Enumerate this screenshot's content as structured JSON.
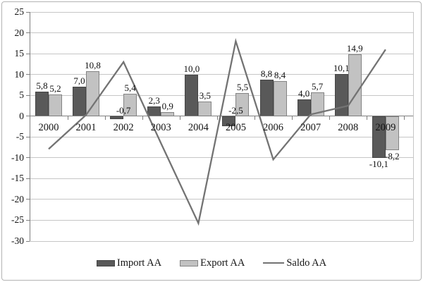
{
  "chart_data": {
    "type": "bar+line",
    "categories": [
      "2000",
      "2001",
      "2002",
      "2003",
      "2004",
      "2005",
      "2006",
      "2007",
      "2008",
      "2009"
    ],
    "series": [
      {
        "name": "Import AA",
        "type": "bar",
        "color": "#595959",
        "border_color": "#454545",
        "values": [
          5.8,
          7.0,
          -0.7,
          2.3,
          10.0,
          -2.5,
          8.8,
          4.0,
          10.1,
          -10.1
        ],
        "data_labels": [
          "5,8",
          "7,0",
          "-0,7",
          "2,3",
          "10,0",
          "-2,5",
          "8,8",
          "4,0",
          "10,1",
          "-10,1"
        ]
      },
      {
        "name": "Export AA",
        "type": "bar",
        "color": "#c2c2c2",
        "border_color": "#848484",
        "values": [
          5.2,
          10.8,
          5.4,
          0.9,
          3.5,
          5.5,
          8.4,
          5.7,
          14.9,
          -8.2
        ],
        "data_labels": [
          "5,2",
          "10,8",
          "5,4",
          "0,9",
          "3,5",
          "5,5",
          "8,4",
          "5,7",
          "14,9",
          "-8,2"
        ]
      },
      {
        "name": "Saldo AA",
        "type": "line",
        "color": "#737373",
        "values": [
          -7.9,
          0.3,
          13.0,
          -6.5,
          -25.7,
          18.0,
          -10.4,
          0.4,
          2.5,
          16.0
        ]
      }
    ],
    "y_axis": {
      "min": -30,
      "max": 25,
      "step": 5,
      "tick_labels": [
        "25",
        "20",
        "15",
        "10",
        "5",
        "0",
        "-5",
        "-10",
        "-15",
        "-20",
        "-25",
        "-30"
      ]
    },
    "x_axis": {
      "tick_labels": [
        "2000",
        "2001",
        "2002",
        "2003",
        "2004",
        "2005",
        "2006",
        "2007",
        "2008",
        "2009"
      ]
    },
    "grid": true,
    "legend_position": "bottom",
    "number_format": "comma-decimal",
    "colors": {
      "gridline": "#c6c6c6",
      "axis": "#7f7f7f",
      "text": "#141414",
      "background": "#ffffff",
      "figure_border": "#b3b3b3"
    }
  }
}
